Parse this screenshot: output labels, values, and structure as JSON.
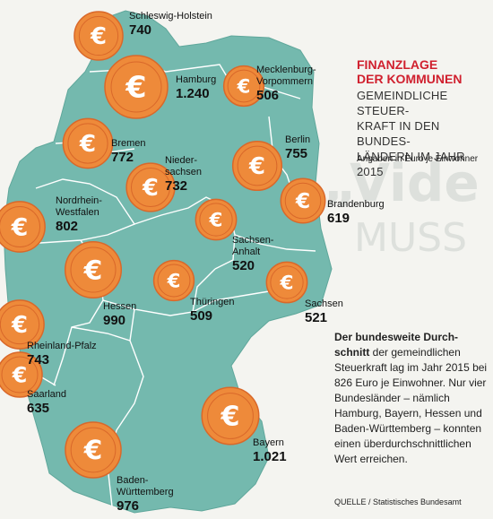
{
  "chart_data": {
    "type": "map",
    "title": "FINANZLAGE DER KOMMUNEN",
    "subtitle": "GEMEINDLICHE STEUER-KRAFT IN DEN BUNDES-LÄNDERN IM JAHR 2015",
    "unit": "Angaben in Euro je Einwohner",
    "regions": [
      {
        "name": "Schleswig-Holstein",
        "value": 740,
        "label": "740"
      },
      {
        "name": "Hamburg",
        "value": 1240,
        "label": "1.240"
      },
      {
        "name": "Mecklenburg-Vorpommern",
        "value": 506,
        "label": "506"
      },
      {
        "name": "Bremen",
        "value": 772,
        "label": "772"
      },
      {
        "name": "Berlin",
        "value": 755,
        "label": "755"
      },
      {
        "name": "Niedersachsen",
        "value": 732,
        "label": "732"
      },
      {
        "name": "Brandenburg",
        "value": 619,
        "label": "619"
      },
      {
        "name": "Nordrhein-Westfalen",
        "value": 802,
        "label": "802"
      },
      {
        "name": "Sachsen-Anhalt",
        "value": 520,
        "label": "520"
      },
      {
        "name": "Hessen",
        "value": 990,
        "label": "990"
      },
      {
        "name": "Thüringen",
        "value": 509,
        "label": "509"
      },
      {
        "name": "Sachsen",
        "value": 521,
        "label": "521"
      },
      {
        "name": "Rheinland-Pfalz",
        "value": 743,
        "label": "743"
      },
      {
        "name": "Saarland",
        "value": 635,
        "label": "635"
      },
      {
        "name": "Bayern",
        "value": 1021,
        "label": "1.021"
      },
      {
        "name": "Baden-Württemberg",
        "value": 976,
        "label": "976"
      }
    ]
  },
  "labels": {
    "sh_a": "Schleswig-Holstein",
    "hh": "Hamburg",
    "mv_a": "Mecklenburg-",
    "mv_b": "Vorpommern",
    "hb": "Bremen",
    "be": "Berlin",
    "ni_a": "Nieder-",
    "ni_b": "sachsen",
    "bb": "Brandenburg",
    "nw_a": "Nordrhein-",
    "nw_b": "Westfalen",
    "st_a": "Sachsen-",
    "st_b": "Anhalt",
    "he": "Hessen",
    "th": "Thüringen",
    "sn": "Sachsen",
    "rp": "Rheinland-Pfalz",
    "sl": "Saarland",
    "by": "Bayern",
    "bw_a": "Baden-",
    "bw_b": "Württemberg"
  },
  "title_lines": [
    "FINANZLAGE",
    "DER KOMMUNEN"
  ],
  "subtitle_lines": [
    "GEMEINDLICHE STEUER-",
    "KRAFT IN DEN BUNDES-",
    "LÄNDERN IM JAHR 2015"
  ],
  "summary": {
    "bold": "Der bundesweite Durch-schnitt",
    "rest": " der gemeindlichen Steuerkraft lag im Jahr 2015 bei 826 Euro je Einwohner. Nur vier Bundesländer – nämlich Hamburg, Bayern, Hessen und Baden-Württemberg – konnten einen überdurchschnittlichen Wert erreichen."
  },
  "source": "QUELLE / Statistisches Bundesamt",
  "colors": {
    "map": "#74b9ae",
    "border": "#ffffff",
    "coin": "#ee8a3a",
    "coin_dark": "#d9682a",
    "title": "#d0202e"
  }
}
